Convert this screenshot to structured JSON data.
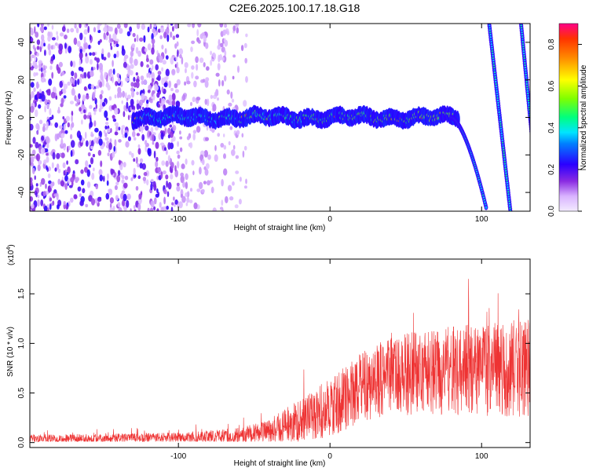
{
  "title": "C2E6.2025.100.17.18.G18",
  "chart_data": [
    {
      "type": "heatmap",
      "xlabel": "Height of straight line (km)",
      "ylabel": "Frequency (Hz)",
      "xlim": [
        -198,
        132
      ],
      "ylim": [
        -50,
        50
      ],
      "xticks": [
        -100,
        0,
        100
      ],
      "yticks": [
        -40,
        -20,
        0,
        20,
        40
      ],
      "colorbar": {
        "label": "Normalized spectral amplitude",
        "ticks": [
          0.0,
          0.2,
          0.4,
          0.6,
          0.8
        ],
        "range": [
          0.0,
          0.9
        ]
      },
      "features": {
        "main_band": {
          "x_start": -130,
          "x_end": 85,
          "center_freq": 0,
          "freq_half_width": 4,
          "description": "high amplitude band near 0 Hz"
        },
        "band_bend": {
          "from_x": 80,
          "to_x": 103,
          "from_freq": 0,
          "to_freq": -48
        },
        "diagonal_streaks": [
          {
            "x_top": 105,
            "freq_top": 50,
            "x_bottom": 119,
            "freq_bottom": -50
          },
          {
            "x_top": 126,
            "freq_top": 50,
            "x_bottom": 138,
            "freq_bottom": -50
          }
        ],
        "noise_region": {
          "x_start": -198,
          "x_end": -55,
          "dense_until": -100
        }
      }
    },
    {
      "type": "line",
      "xlabel": "Height of straight line (km)",
      "ylabel": "SNR (10 * v/v)",
      "yscale_note": "(x10",
      "yscale_exp": "4",
      "xlim": [
        -198,
        132
      ],
      "ylim": [
        -0.05,
        1.85
      ],
      "xticks": [
        -100,
        0,
        100
      ],
      "yticks": [
        "0.0",
        "0.5",
        "1.0",
        "1.5"
      ],
      "series": [
        {
          "color": "#ee3333",
          "envelope": [
            {
              "x": -198,
              "mean": 0.04,
              "spread": 0.04
            },
            {
              "x": -100,
              "mean": 0.05,
              "spread": 0.05
            },
            {
              "x": -60,
              "mean": 0.07,
              "spread": 0.08
            },
            {
              "x": -40,
              "mean": 0.12,
              "spread": 0.12
            },
            {
              "x": -20,
              "mean": 0.22,
              "spread": 0.22
            },
            {
              "x": 0,
              "mean": 0.35,
              "spread": 0.3
            },
            {
              "x": 20,
              "mean": 0.55,
              "spread": 0.35
            },
            {
              "x": 40,
              "mean": 0.68,
              "spread": 0.4
            },
            {
              "x": 80,
              "mean": 0.72,
              "spread": 0.45
            },
            {
              "x": 132,
              "mean": 0.75,
              "spread": 0.5
            }
          ]
        }
      ]
    }
  ]
}
